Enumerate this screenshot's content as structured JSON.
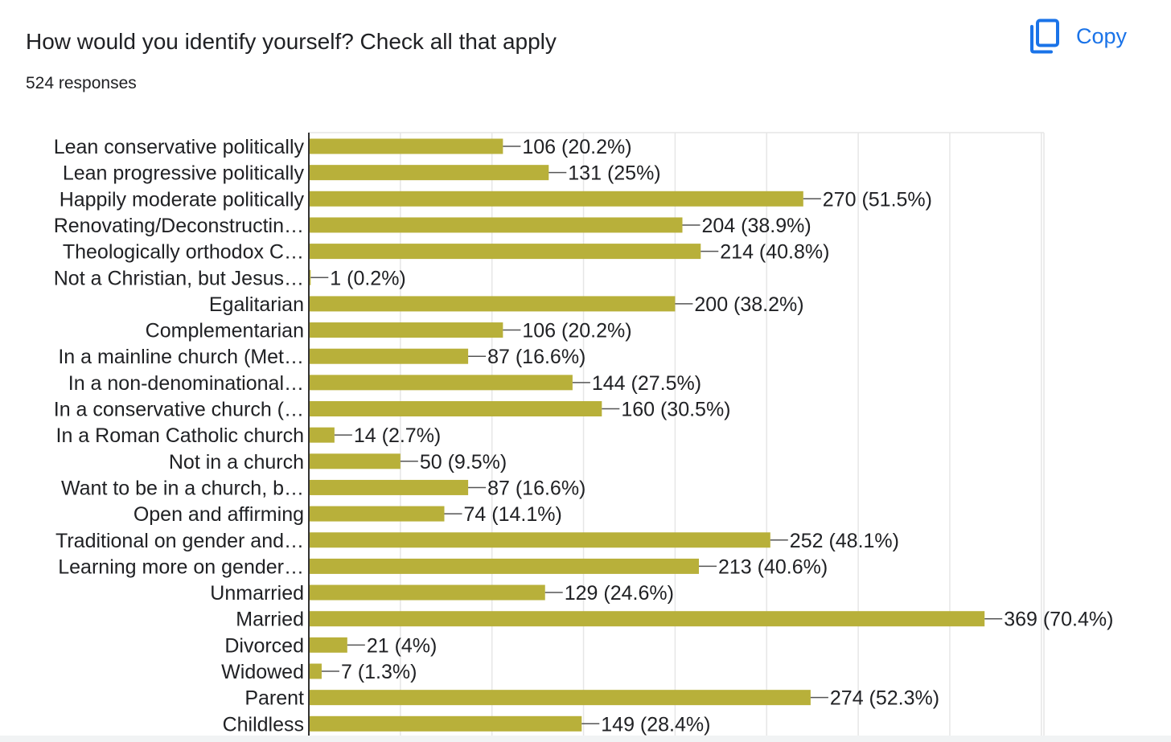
{
  "header": {
    "title": "How would you identify yourself? Check all that apply",
    "responses": "524 responses",
    "copy_label": "Copy",
    "copy_icon": "copy-icon"
  },
  "colors": {
    "bar": "#b8b03a",
    "accent": "#1a73e8",
    "grid": "#e6e6e6",
    "axis": "#333333",
    "text": "#202124"
  },
  "chart_data": {
    "type": "bar",
    "orientation": "horizontal",
    "xlim": [
      0,
      400
    ],
    "grid": true,
    "categories": [
      "Lean conservative politically",
      "Lean progressive politically",
      "Happily moderate politically",
      "Renovating/Deconstructin…",
      "Theologically orthodox C…",
      "Not a Christian, but Jesus…",
      "Egalitarian",
      "Complementarian",
      "In a mainline church (Met…",
      "In a non-denominational…",
      "In a conservative church (…",
      "In a Roman Catholic church",
      "Not in a church",
      "Want to be in a church, b…",
      "Open and affirming",
      "Traditional on gender and…",
      "Learning more on gender…",
      "Unmarried",
      "Married",
      "Divorced",
      "Widowed",
      "Parent",
      "Childless"
    ],
    "values": [
      106,
      131,
      270,
      204,
      214,
      1,
      200,
      106,
      87,
      144,
      160,
      14,
      50,
      87,
      74,
      252,
      213,
      129,
      369,
      21,
      7,
      274,
      149
    ],
    "labels": [
      "106 (20.2%)",
      "131 (25%)",
      "270 (51.5%)",
      "204 (38.9%)",
      "214 (40.8%)",
      "1 (0.2%)",
      "200 (38.2%)",
      "106 (20.2%)",
      "87 (16.6%)",
      "144 (27.5%)",
      "160 (30.5%)",
      "14 (2.7%)",
      "50 (9.5%)",
      "87 (16.6%)",
      "74 (14.1%)",
      "252 (48.1%)",
      "213 (40.6%)",
      "129 (24.6%)",
      "369 (70.4%)",
      "21 (4%)",
      "7 (1.3%)",
      "274 (52.3%)",
      "149 (28.4%)"
    ]
  }
}
